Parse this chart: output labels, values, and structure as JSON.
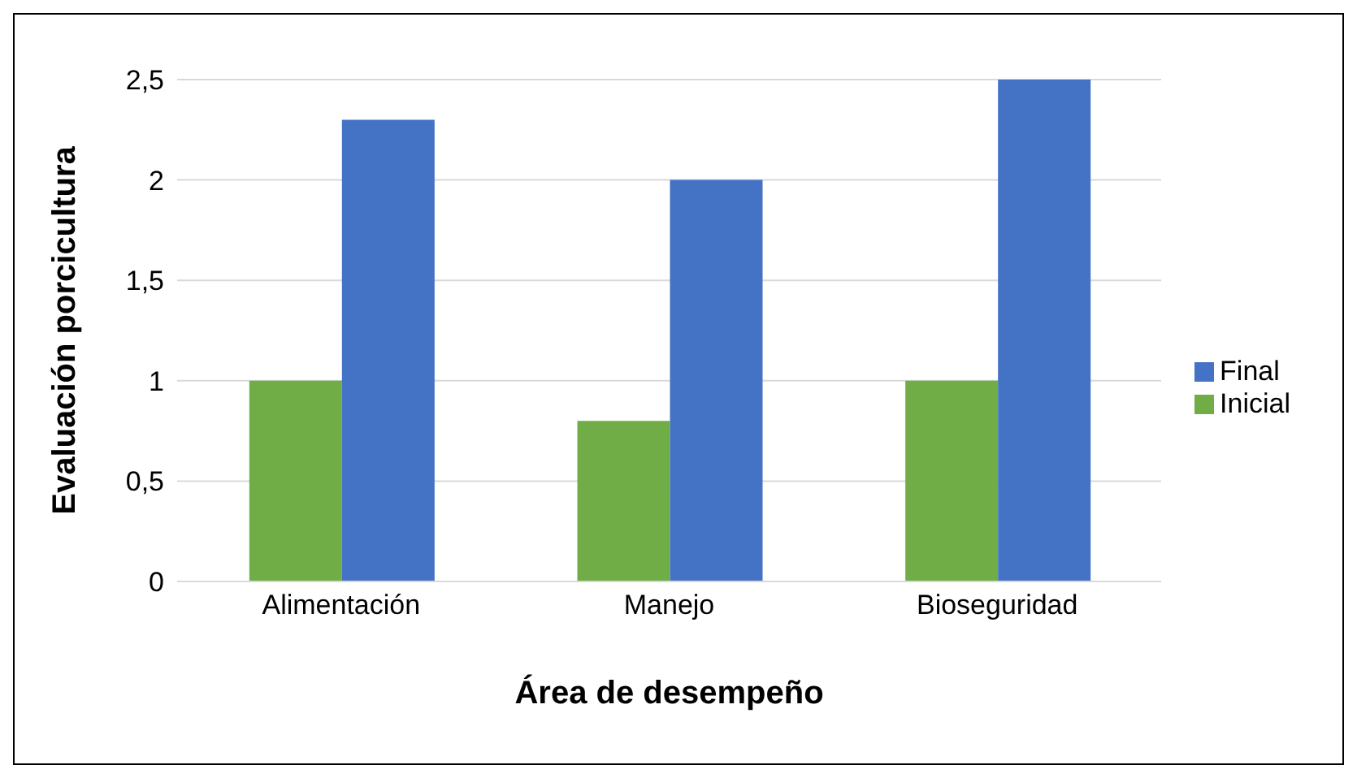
{
  "chart_data": {
    "type": "bar",
    "xlabel": "Área de desempeño",
    "ylabel": "Evaluación porcicultura",
    "categories": [
      "Alimentación",
      "Manejo",
      "Bioseguridad"
    ],
    "series": [
      {
        "name": "Inicial",
        "color": "#70ad47",
        "values": [
          1,
          0.8,
          1
        ]
      },
      {
        "name": "Final",
        "color": "#4472c4",
        "values": [
          2.3,
          2,
          2.5
        ]
      }
    ],
    "ylim": [
      0,
      2.5
    ],
    "yticks": [
      0,
      {
        "value": 0.5,
        "label": "0,5"
      },
      1,
      {
        "value": 1.5,
        "label": "1,5"
      },
      2,
      {
        "value": 2.5,
        "label": "2,5"
      }
    ],
    "grid": "y",
    "legend": "right"
  }
}
